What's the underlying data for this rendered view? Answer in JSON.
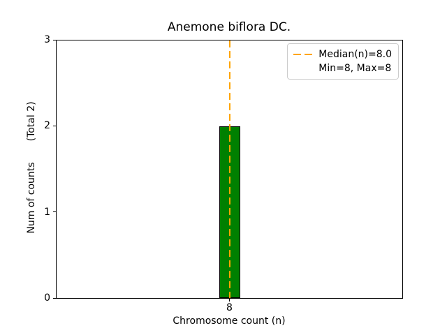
{
  "chart_data": {
    "type": "bar",
    "title": "Anemone biflora DC.",
    "xlabel": "Chromosome count (n)",
    "ylabel": "Num of counts",
    "ylabel_annotation": "(Total 2)",
    "categories": [
      "8"
    ],
    "values": [
      2
    ],
    "total_count": 2,
    "ylim": [
      0,
      3
    ],
    "yticks": [
      0,
      1,
      2,
      3
    ],
    "grid": false,
    "bar_color": "#008000",
    "bar_edge_color": "#000000",
    "median_line": {
      "x": 8.0,
      "color": "#FFA500",
      "style": "dashed",
      "linewidth": 2
    },
    "legend": {
      "position": "upper right",
      "entries": [
        {
          "label": "Median(n)=8.0",
          "marker": "orange-dashed-line",
          "marker_color": "#FFA500"
        },
        {
          "label": "Min=8, Max=8",
          "marker": "none"
        }
      ]
    }
  }
}
